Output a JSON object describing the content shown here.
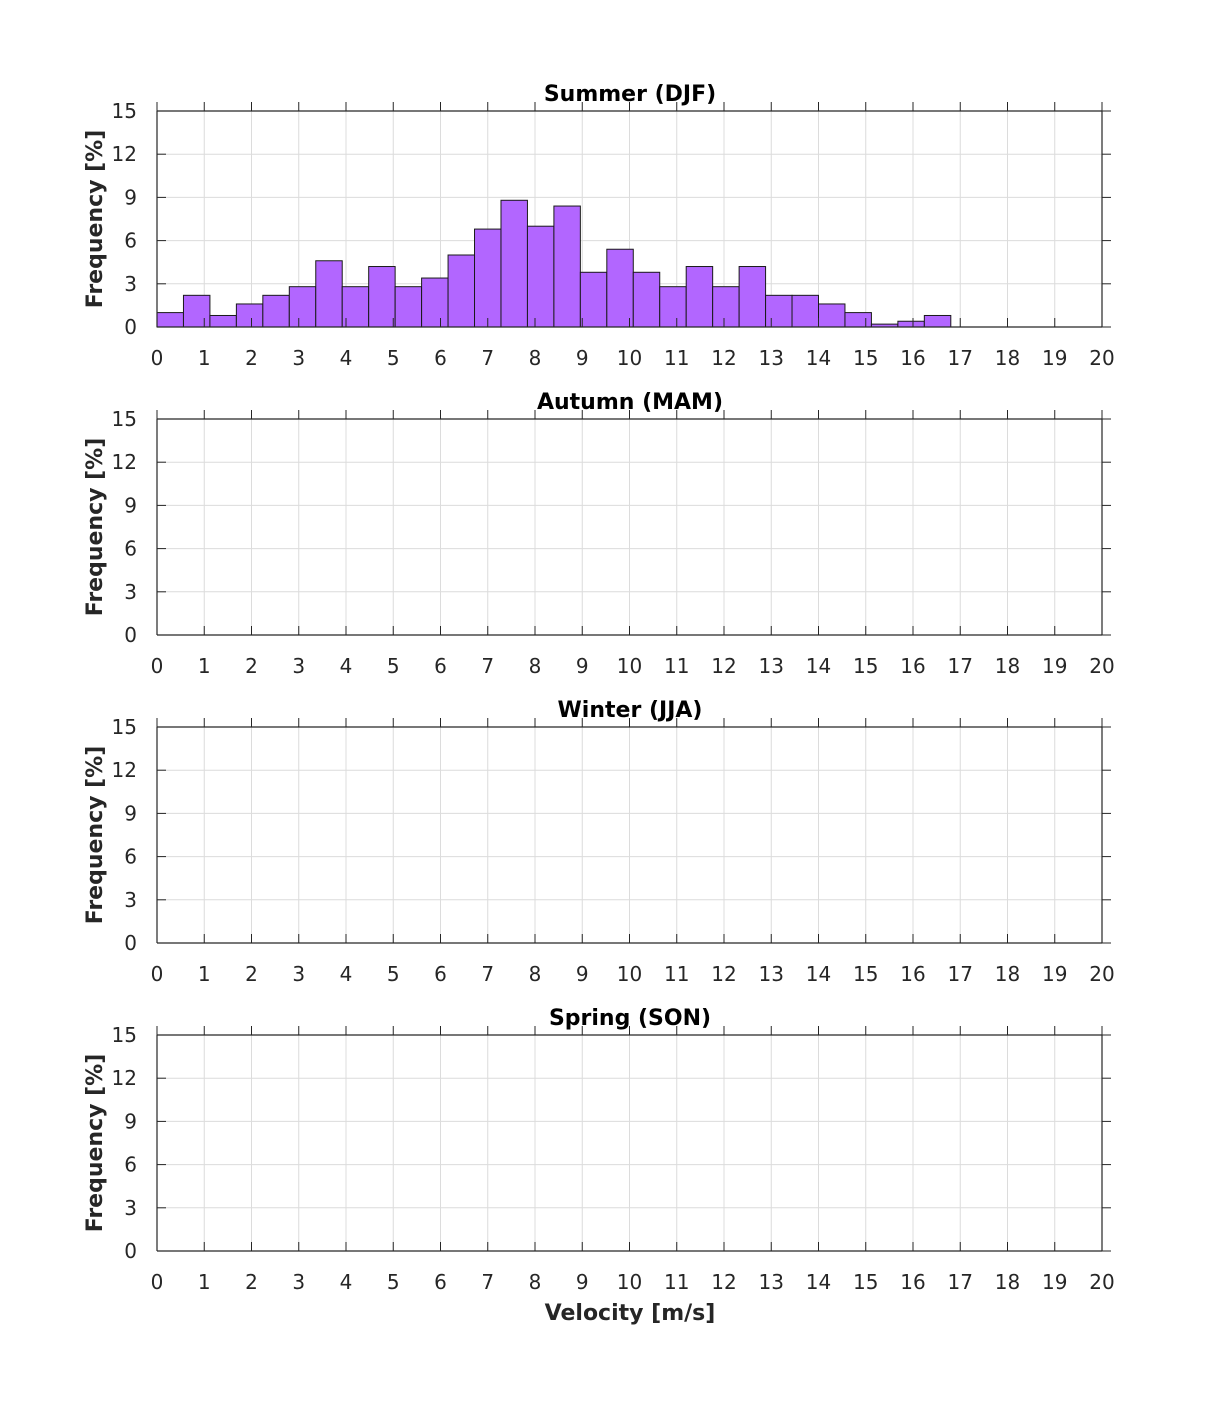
{
  "figure": {
    "xlabel": "Velocity [m/s]",
    "colors": {
      "bar_fill": "#b266ff",
      "bar_edge": "#1a1a1a",
      "grid": "#dcdcdc",
      "axis": "#262626"
    }
  },
  "chart_data": [
    {
      "type": "bar",
      "title": "Summer (DJF)",
      "ylabel": "Frequency [%]",
      "xlabel": "",
      "xlim": [
        0,
        20
      ],
      "ylim": [
        0,
        15
      ],
      "xticks": [
        0,
        1,
        2,
        3,
        4,
        5,
        6,
        7,
        8,
        9,
        10,
        11,
        12,
        13,
        14,
        15,
        16,
        17,
        18,
        19,
        20
      ],
      "yticks": [
        0,
        3,
        6,
        9,
        12,
        15
      ],
      "grid": true,
      "bin_width": 0.56,
      "bin_start": 0,
      "values": [
        1.0,
        2.2,
        0.8,
        1.6,
        2.2,
        2.8,
        4.6,
        2.8,
        4.2,
        2.8,
        3.4,
        5.0,
        6.8,
        8.8,
        7.0,
        8.4,
        3.8,
        5.4,
        3.8,
        2.8,
        4.2,
        2.8,
        4.2,
        2.2,
        2.2,
        1.6,
        1.0,
        0.2,
        0.4,
        0.8
      ]
    },
    {
      "type": "bar",
      "title": "Autumn (MAM)",
      "ylabel": "Frequency [%]",
      "xlabel": "",
      "xlim": [
        0,
        20
      ],
      "ylim": [
        0,
        15
      ],
      "xticks": [
        0,
        1,
        2,
        3,
        4,
        5,
        6,
        7,
        8,
        9,
        10,
        11,
        12,
        13,
        14,
        15,
        16,
        17,
        18,
        19,
        20
      ],
      "yticks": [
        0,
        3,
        6,
        9,
        12,
        15
      ],
      "grid": true,
      "values": []
    },
    {
      "type": "bar",
      "title": "Winter (JJA)",
      "ylabel": "Frequency [%]",
      "xlabel": "",
      "xlim": [
        0,
        20
      ],
      "ylim": [
        0,
        15
      ],
      "xticks": [
        0,
        1,
        2,
        3,
        4,
        5,
        6,
        7,
        8,
        9,
        10,
        11,
        12,
        13,
        14,
        15,
        16,
        17,
        18,
        19,
        20
      ],
      "yticks": [
        0,
        3,
        6,
        9,
        12,
        15
      ],
      "grid": true,
      "values": []
    },
    {
      "type": "bar",
      "title": "Spring (SON)",
      "ylabel": "Frequency [%]",
      "xlabel": "Velocity [m/s]",
      "xlim": [
        0,
        20
      ],
      "ylim": [
        0,
        15
      ],
      "xticks": [
        0,
        1,
        2,
        3,
        4,
        5,
        6,
        7,
        8,
        9,
        10,
        11,
        12,
        13,
        14,
        15,
        16,
        17,
        18,
        19,
        20
      ],
      "yticks": [
        0,
        3,
        6,
        9,
        12,
        15
      ],
      "grid": true,
      "values": []
    }
  ]
}
